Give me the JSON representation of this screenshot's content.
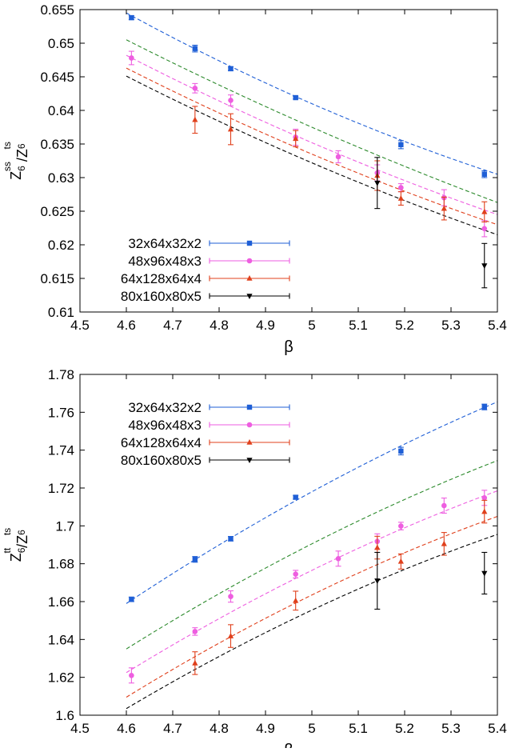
{
  "chart_data": [
    {
      "type": "scatter",
      "title": "",
      "xlabel": "β",
      "ylabel_main": "Z",
      "ylabel_sub": "6",
      "ylabel_sup": "ss",
      "ylabel_sep": "/Z",
      "ylabel_sub2": "6",
      "ylabel_sup2": "ts",
      "xlim": [
        4.5,
        5.4
      ],
      "ylim": [
        0.61,
        0.655
      ],
      "xticks": [
        4.5,
        4.6,
        4.7,
        4.8,
        4.9,
        5.0,
        5.1,
        5.2,
        5.3,
        5.4
      ],
      "xtick_labels": [
        "4.5",
        "4.6",
        "4.7",
        "4.8",
        "4.9",
        "5",
        "5.1",
        "5.2",
        "5.3",
        "5.4"
      ],
      "yticks": [
        0.61,
        0.615,
        0.62,
        0.625,
        0.63,
        0.635,
        0.64,
        0.645,
        0.65,
        0.655
      ],
      "ytick_labels": [
        "0.61",
        "0.615",
        "0.62",
        "0.625",
        "0.63",
        "0.635",
        "0.64",
        "0.645",
        "0.65",
        "0.655"
      ],
      "grid": false,
      "legend_position": "bottom-left",
      "series": [
        {
          "name": "32x64x32x2",
          "color": "#1f5fd6",
          "marker": "square",
          "points": [
            [
              4.611,
              0.6538,
              0.0003
            ],
            [
              4.748,
              0.6492,
              0.0005
            ],
            [
              4.825,
              0.6462,
              0.0003
            ],
            [
              4.965,
              0.6419,
              0.0002
            ],
            [
              5.192,
              0.6349,
              0.0006
            ],
            [
              5.372,
              0.6305,
              0.0005
            ]
          ]
        },
        {
          "name": "48x96x48x3",
          "color": "#ee5ee0",
          "marker": "circle",
          "points": [
            [
              4.611,
              0.6478,
              0.001
            ],
            [
              4.748,
              0.6433,
              0.0007
            ],
            [
              4.825,
              0.6415,
              0.0008
            ],
            [
              4.965,
              0.636,
              0.0012
            ],
            [
              5.057,
              0.6331,
              0.0009
            ],
            [
              5.141,
              0.6307,
              0.0012
            ],
            [
              5.192,
              0.6285,
              0.0006
            ],
            [
              5.285,
              0.627,
              0.0012
            ],
            [
              5.372,
              0.6224,
              0.0012
            ]
          ]
        },
        {
          "name": "64x128x64x4",
          "color": "#e0401c",
          "marker": "triangle-up",
          "points": [
            [
              4.748,
              0.6386,
              0.002
            ],
            [
              4.825,
              0.6372,
              0.0023
            ],
            [
              4.965,
              0.6358,
              0.0012
            ],
            [
              5.141,
              0.6303,
              0.0022
            ],
            [
              5.192,
              0.6269,
              0.001
            ],
            [
              5.285,
              0.6254,
              0.0017
            ],
            [
              5.372,
              0.6249,
              0.0015
            ]
          ]
        },
        {
          "name": "80x160x80x5",
          "color": "#000000",
          "marker": "triangle-down",
          "points": [
            [
              5.141,
              0.6292,
              0.0038
            ],
            [
              5.372,
              0.6169,
              0.0033
            ]
          ]
        }
      ],
      "fits": [
        {
          "color": "#1f5fd6",
          "x": [
            4.6,
            5.0,
            5.4
          ],
          "y": [
            0.6545,
            0.641,
            0.6305
          ]
        },
        {
          "color": "#2c8a2c",
          "x": [
            4.6,
            5.0,
            5.4
          ],
          "y": [
            0.6505,
            0.6375,
            0.6263
          ]
        },
        {
          "color": "#ee5ee0",
          "x": [
            4.6,
            5.0,
            5.4
          ],
          "y": [
            0.6482,
            0.6352,
            0.6245
          ]
        },
        {
          "color": "#e0401c",
          "x": [
            4.6,
            5.0,
            5.4
          ],
          "y": [
            0.6463,
            0.6335,
            0.623
          ]
        },
        {
          "color": "#000000",
          "x": [
            4.6,
            5.0,
            5.4
          ],
          "y": [
            0.6451,
            0.6322,
            0.6215
          ]
        }
      ]
    },
    {
      "type": "scatter",
      "title": "",
      "xlabel": "β",
      "ylabel_main": "Z",
      "ylabel_sub": "6",
      "ylabel_sup": "tt",
      "ylabel_sep": "/Z",
      "ylabel_sub2": "6",
      "ylabel_sup2": "ts",
      "xlim": [
        4.5,
        5.4
      ],
      "ylim": [
        1.6,
        1.78
      ],
      "xticks": [
        4.5,
        4.6,
        4.7,
        4.8,
        4.9,
        5.0,
        5.1,
        5.2,
        5.3,
        5.4
      ],
      "xtick_labels": [
        "4.5",
        "4.6",
        "4.7",
        "4.8",
        "4.9",
        "5",
        "5.1",
        "5.2",
        "5.3",
        "5.4"
      ],
      "yticks": [
        1.6,
        1.62,
        1.64,
        1.66,
        1.68,
        1.7,
        1.72,
        1.74,
        1.76,
        1.78
      ],
      "ytick_labels": [
        "1.6",
        "1.62",
        "1.64",
        "1.66",
        "1.68",
        "1.7",
        "1.72",
        "1.74",
        "1.76",
        "1.78"
      ],
      "grid": false,
      "legend_position": "top-left",
      "series": [
        {
          "name": "32x64x32x2",
          "color": "#1f5fd6",
          "marker": "square",
          "points": [
            [
              4.611,
              1.6612,
              0.0012
            ],
            [
              4.748,
              1.6823,
              0.0015
            ],
            [
              4.825,
              1.6932,
              0.0012
            ],
            [
              4.965,
              1.7151,
              0.001
            ],
            [
              5.192,
              1.7395,
              0.002
            ],
            [
              5.372,
              1.7628,
              0.0015
            ]
          ]
        },
        {
          "name": "48x96x48x3",
          "color": "#ee5ee0",
          "marker": "circle",
          "points": [
            [
              4.611,
              1.621,
              0.004
            ],
            [
              4.748,
              1.6442,
              0.002
            ],
            [
              4.825,
              1.6627,
              0.003
            ],
            [
              4.965,
              1.6745,
              0.002
            ],
            [
              5.057,
              1.6827,
              0.004
            ],
            [
              5.141,
              1.6918,
              0.004
            ],
            [
              5.192,
              1.6999,
              0.002
            ],
            [
              5.285,
              1.7107,
              0.004
            ],
            [
              5.372,
              1.7148,
              0.004
            ]
          ]
        },
        {
          "name": "64x128x64x4",
          "color": "#e0401c",
          "marker": "triangle-up",
          "points": [
            [
              4.748,
              1.6275,
              0.006
            ],
            [
              4.825,
              1.6418,
              0.006
            ],
            [
              4.965,
              1.6605,
              0.005
            ],
            [
              5.141,
              1.6885,
              0.006
            ],
            [
              5.192,
              1.6812,
              0.004
            ],
            [
              5.285,
              1.6905,
              0.006
            ],
            [
              5.372,
              1.7075,
              0.006
            ]
          ]
        },
        {
          "name": "80x160x80x5",
          "color": "#000000",
          "marker": "triangle-down",
          "points": [
            [
              5.141,
              1.671,
              0.015
            ],
            [
              5.372,
              1.675,
              0.011
            ]
          ]
        }
      ],
      "fits": [
        {
          "color": "#1f5fd6",
          "x": [
            4.6,
            5.0,
            5.4
          ],
          "y": [
            1.659,
            1.718,
            1.7655
          ]
        },
        {
          "color": "#2c8a2c",
          "x": [
            4.6,
            5.0,
            5.4
          ],
          "y": [
            1.635,
            1.6905,
            1.7345
          ]
        },
        {
          "color": "#ee5ee0",
          "x": [
            4.6,
            5.0,
            5.4
          ],
          "y": [
            1.6225,
            1.6765,
            1.7185
          ]
        },
        {
          "color": "#e0401c",
          "x": [
            4.6,
            5.0,
            5.4
          ],
          "y": [
            1.6095,
            1.6635,
            1.705
          ]
        },
        {
          "color": "#000000",
          "x": [
            4.6,
            5.0,
            5.4
          ],
          "y": [
            1.6035,
            1.6555,
            1.6955
          ]
        }
      ]
    }
  ]
}
